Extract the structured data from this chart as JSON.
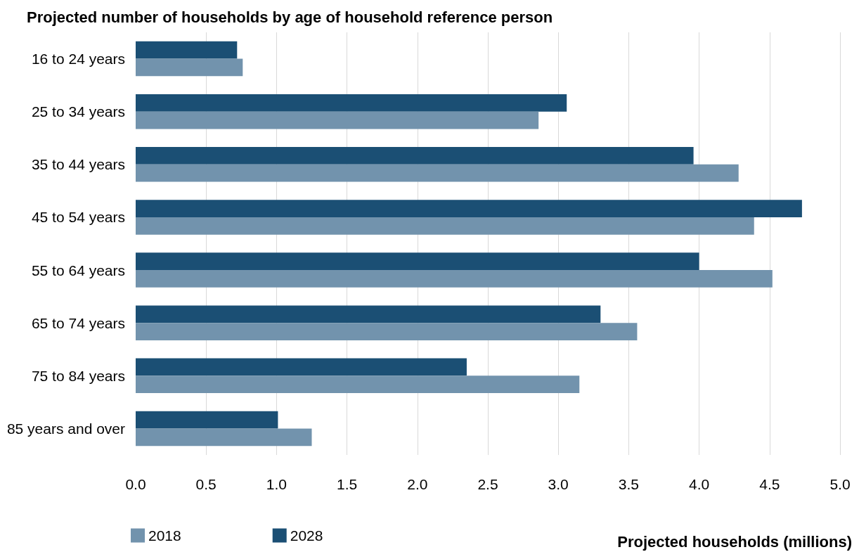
{
  "chart_data": {
    "type": "bar",
    "orientation": "horizontal",
    "title": "Projected number of households by age of household reference person",
    "xlabel": "Projected households (millions)",
    "categories": [
      "16 to 24 years",
      "25 to 34 years",
      "35 to 44 years",
      "45 to 54 years",
      "55 to 64 years",
      "65 to 74 years",
      "75 to 84 years",
      "85 years and over"
    ],
    "series": [
      {
        "name": "2018",
        "color": "#7293ad",
        "values": [
          0.76,
          2.86,
          4.28,
          4.39,
          4.52,
          3.56,
          3.15,
          1.25
        ]
      },
      {
        "name": "2028",
        "color": "#1b4f74",
        "values": [
          0.72,
          3.06,
          3.96,
          4.73,
          4.0,
          3.3,
          2.35,
          1.01
        ]
      }
    ],
    "xlim": [
      0,
      5
    ],
    "xticks": [
      {
        "value": 0,
        "label": "0.0"
      },
      {
        "value": 0.5,
        "label": "0.5"
      },
      {
        "value": 1,
        "label": "1.0"
      },
      {
        "value": 1.5,
        "label": "1.5"
      },
      {
        "value": 2,
        "label": "2.0"
      },
      {
        "value": 2.5,
        "label": "2.5"
      },
      {
        "value": 3,
        "label": "3.0"
      },
      {
        "value": 3.5,
        "label": "3.5"
      },
      {
        "value": 4,
        "label": "4.0"
      },
      {
        "value": 4.5,
        "label": "4.5"
      },
      {
        "value": 5,
        "label": "5.0"
      }
    ],
    "grid": "x",
    "legend": "bottom left"
  }
}
